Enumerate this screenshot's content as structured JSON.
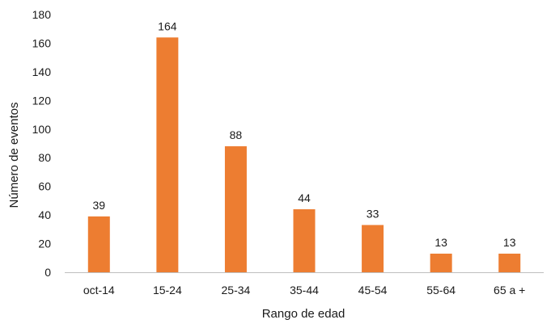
{
  "chart_data": {
    "type": "bar",
    "title": "",
    "xlabel": "Rango de edad",
    "ylabel": "Número de eventos",
    "categories": [
      "oct-14",
      "15-24",
      "25-34",
      "35-44",
      "45-54",
      "55-64",
      "65 a +"
    ],
    "values": [
      39,
      164,
      88,
      44,
      33,
      13,
      13
    ],
    "ylim": [
      0,
      180
    ],
    "yticks": [
      0,
      20,
      40,
      60,
      80,
      100,
      120,
      140,
      160,
      180
    ],
    "grid": false,
    "legend": "none",
    "colors": {
      "bar": "#ED7D31",
      "axis": "#bfbfbf"
    }
  }
}
